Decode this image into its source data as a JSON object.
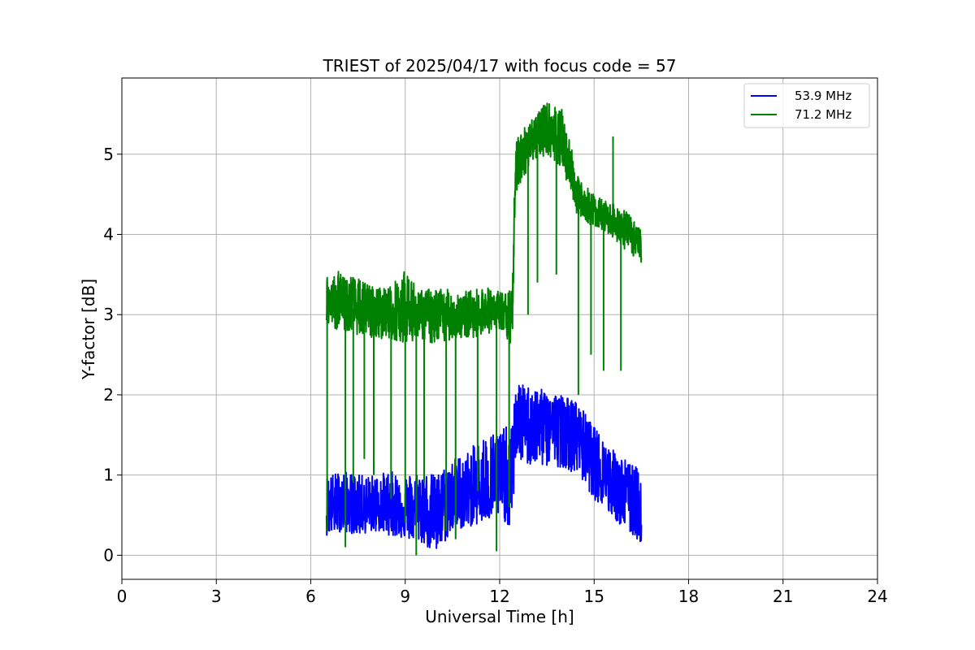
{
  "chart_data": {
    "type": "line",
    "title": "TRIEST of 2025/04/17 with focus code = 57",
    "xlabel": "Universal Time [h]",
    "ylabel": "Y-factor [dB]",
    "xlim": [
      0,
      24
    ],
    "ylim": [
      -0.3,
      5.95
    ],
    "xticks": [
      0,
      3,
      6,
      9,
      12,
      15,
      18,
      21,
      24
    ],
    "yticks": [
      0,
      1,
      2,
      3,
      4,
      5
    ],
    "grid": true,
    "legend_position": "top-right",
    "series": [
      {
        "name": "53.9 MHz",
        "color": "#0000ff",
        "x": [
          6.5,
          7.0,
          7.5,
          8.0,
          8.5,
          9.0,
          9.5,
          10.0,
          10.5,
          11.0,
          11.5,
          12.0,
          12.4,
          12.5,
          13.0,
          13.5,
          14.0,
          14.5,
          15.0,
          15.5,
          16.0,
          16.5
        ],
        "values": [
          0.6,
          0.62,
          0.6,
          0.6,
          0.62,
          0.58,
          0.6,
          0.55,
          0.72,
          0.75,
          0.8,
          0.82,
          0.85,
          1.7,
          1.65,
          1.7,
          1.72,
          1.5,
          1.2,
          0.95,
          0.75,
          0.6
        ],
        "low": [
          0.25,
          0.3,
          0.25,
          0.3,
          0.25,
          0.2,
          0.15,
          0.0,
          0.3,
          0.35,
          0.4,
          0.5,
          0.3,
          1.2,
          1.1,
          1.1,
          1.1,
          1.0,
          0.7,
          0.5,
          0.3,
          0.15
        ],
        "high": [
          1.0,
          1.05,
          1.0,
          1.0,
          1.05,
          1.0,
          1.05,
          1.0,
          1.2,
          1.3,
          1.5,
          1.6,
          1.6,
          2.15,
          2.1,
          2.05,
          2.0,
          1.9,
          1.6,
          1.35,
          1.2,
          1.05
        ]
      },
      {
        "name": "71.2 MHz",
        "color": "#008000",
        "x": [
          6.5,
          7.0,
          7.5,
          8.0,
          8.5,
          9.0,
          9.5,
          10.0,
          10.5,
          11.0,
          11.5,
          12.0,
          12.4,
          12.5,
          13.0,
          13.5,
          14.0,
          14.5,
          15.0,
          15.5,
          16.0,
          16.5
        ],
        "values": [
          3.1,
          3.15,
          3.05,
          3.0,
          3.0,
          3.0,
          3.05,
          2.9,
          3.0,
          2.95,
          3.05,
          3.0,
          2.9,
          4.8,
          5.2,
          5.3,
          5.2,
          4.4,
          4.3,
          4.2,
          4.05,
          3.85
        ],
        "low": [
          2.85,
          2.8,
          2.75,
          2.7,
          2.7,
          2.65,
          2.7,
          2.6,
          2.7,
          2.7,
          2.75,
          2.8,
          2.6,
          4.5,
          4.9,
          5.0,
          4.8,
          4.2,
          4.1,
          4.0,
          3.8,
          3.65
        ],
        "high": [
          3.5,
          3.55,
          3.45,
          3.35,
          3.35,
          3.55,
          3.3,
          3.35,
          3.3,
          3.3,
          3.35,
          3.3,
          3.3,
          5.2,
          5.45,
          5.65,
          5.55,
          4.7,
          4.5,
          4.4,
          4.3,
          4.05
        ],
        "dropouts": [
          [
            6.52,
            0.3
          ],
          [
            7.1,
            0.1
          ],
          [
            7.35,
            0.9
          ],
          [
            7.7,
            1.2
          ],
          [
            8.0,
            1.0
          ],
          [
            8.55,
            0.7
          ],
          [
            9.0,
            0.4
          ],
          [
            9.35,
            0.0
          ],
          [
            9.6,
            0.9
          ],
          [
            10.3,
            0.3
          ],
          [
            10.6,
            0.2
          ],
          [
            11.3,
            0.8
          ],
          [
            11.9,
            0.05
          ],
          [
            12.3,
            0.6
          ],
          [
            12.9,
            3.0
          ],
          [
            13.2,
            3.4
          ],
          [
            13.8,
            3.5
          ],
          [
            14.5,
            2.0
          ],
          [
            14.9,
            2.5
          ],
          [
            15.3,
            2.3
          ],
          [
            15.85,
            2.3
          ]
        ],
        "spike": [
          15.6,
          5.22
        ]
      }
    ]
  }
}
